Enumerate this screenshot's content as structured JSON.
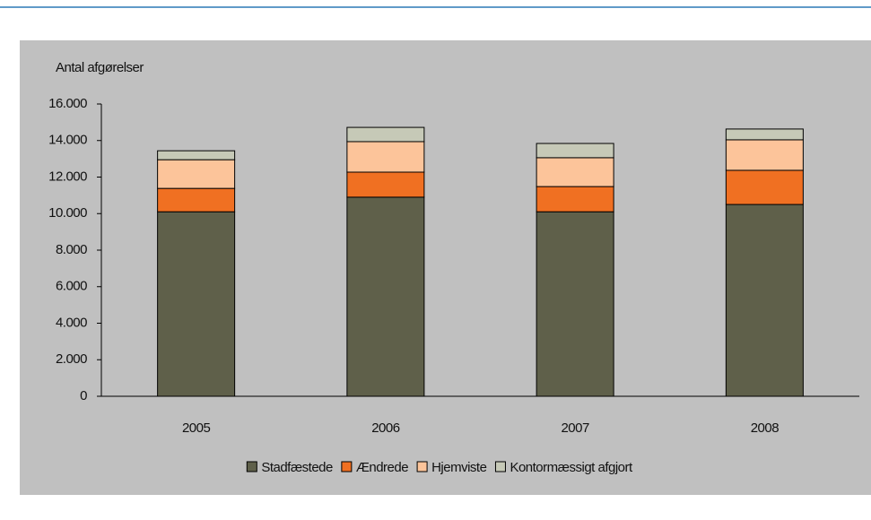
{
  "chart_data": {
    "type": "stacked_bar",
    "y_label": "Antal afgørelser",
    "categories": [
      "2005",
      "2006",
      "2007",
      "2008"
    ],
    "series": [
      {
        "name": "Stadfæstede",
        "color": "#5f604a",
        "values": [
          10100,
          10900,
          10100,
          10500
        ]
      },
      {
        "name": "Ændrede",
        "color": "#f07022",
        "values": [
          1280,
          1370,
          1380,
          1870
        ]
      },
      {
        "name": "Hjemviste",
        "color": "#fcc49a",
        "values": [
          1570,
          1670,
          1580,
          1670
        ]
      },
      {
        "name": "Kontormæssigt afgjort",
        "color": "#c6c9b7",
        "values": [
          490,
          780,
          780,
          590
        ]
      }
    ],
    "ylim": [
      0,
      16000
    ],
    "yticks": [
      0,
      {
        "value": 2000,
        "label": "2.000"
      },
      {
        "value": 4000,
        "label": "4.000"
      },
      {
        "value": 6000,
        "label": "6.000"
      },
      {
        "value": 8000,
        "label": "8.000"
      },
      {
        "value": 10000,
        "label": "10.000"
      },
      {
        "value": 12000,
        "label": "12.000"
      },
      {
        "value": 14000,
        "label": "14.000"
      },
      {
        "value": 16000,
        "label": "16.000"
      }
    ],
    "grid": false,
    "legend": "bottom"
  }
}
